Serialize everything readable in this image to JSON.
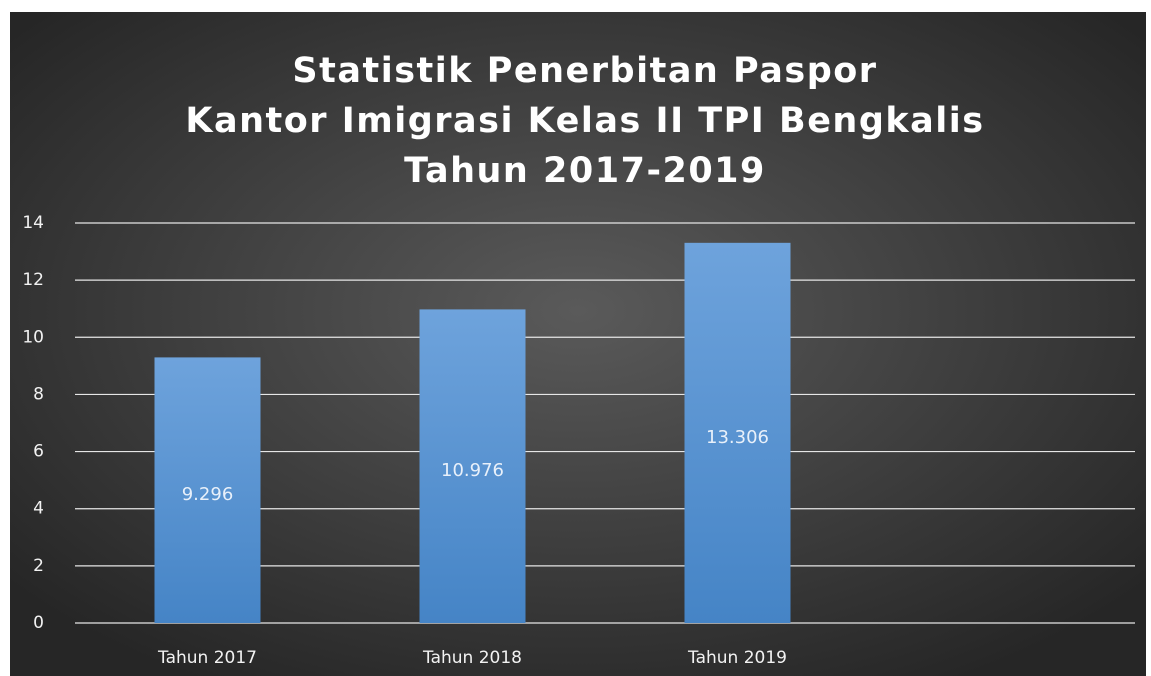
{
  "chart_data": {
    "type": "bar",
    "title": [
      "Statistik Penerbitan Paspor",
      "Kantor Imigrasi Kelas II TPI Bengkalis",
      "Tahun 2017-2019"
    ],
    "categories": [
      "Tahun 2017",
      "Tahun 2018",
      "Tahun 2019",
      null
    ],
    "values": [
      9.296,
      10.976,
      13.306,
      null
    ],
    "color": "#5b9bd5",
    "ylim": [
      0,
      14
    ],
    "yticks": [
      0,
      2,
      4,
      6,
      8,
      10,
      12,
      14
    ],
    "grid": true
  }
}
